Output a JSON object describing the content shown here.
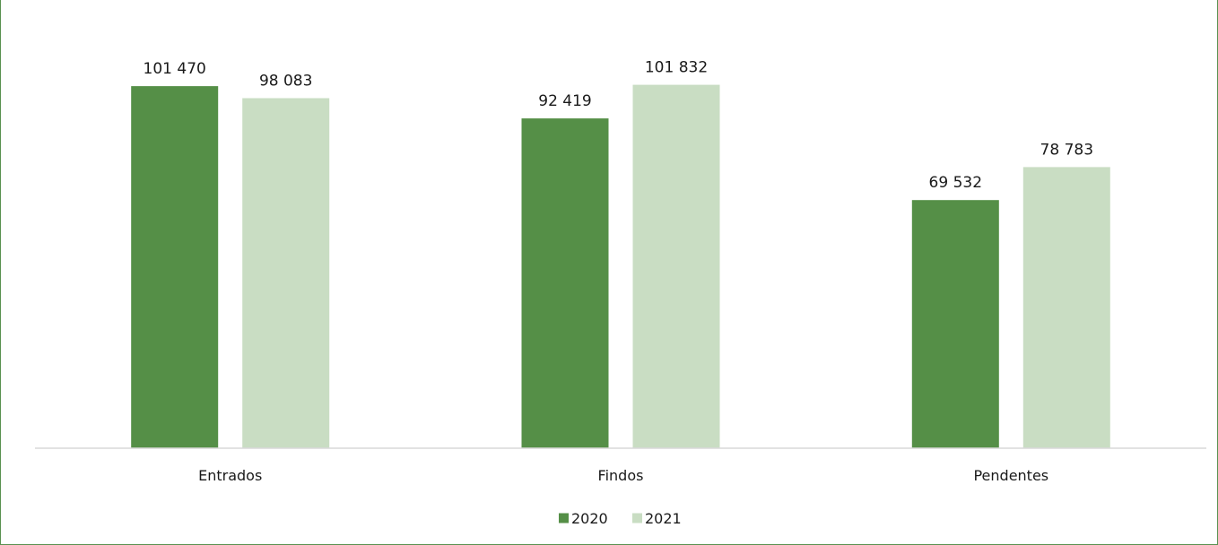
{
  "chart_data": {
    "type": "bar",
    "title": "",
    "xlabel": "",
    "ylabel": "",
    "categories": [
      "Entrados",
      "Findos",
      "Pendentes"
    ],
    "series": [
      {
        "name": "2020",
        "color": "#558f47",
        "values": [
          101470,
          92419,
          69532
        ],
        "labels": [
          "101 470",
          "92 419",
          "69 532"
        ]
      },
      {
        "name": "2021",
        "color": "#c9ddc3",
        "values": [
          98083,
          101832,
          78783
        ],
        "labels": [
          "98 083",
          "101 832",
          "78 783"
        ]
      }
    ],
    "ylim": [
      0,
      105000
    ],
    "grid": false,
    "y_axis_visible": false,
    "legend": "bottom-center",
    "axis_color": "#d9d9d9",
    "frame_color": "#5a9150"
  }
}
